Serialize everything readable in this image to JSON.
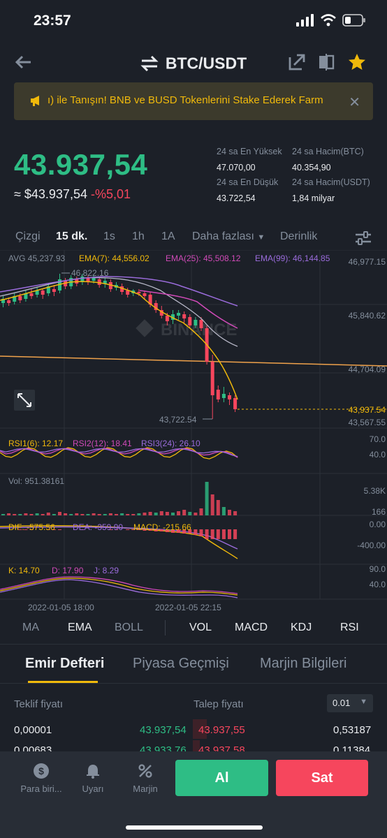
{
  "status": {
    "time": "23:57"
  },
  "nav": {
    "pair": "BTC/USDT"
  },
  "banner": {
    "text": "ı) ile Tanışın! BNB ve BUSD Tokenlerini Stake Ederek Farm",
    "close": "✕"
  },
  "price": {
    "last": "43.937,54",
    "approx": "≈ $43.937,54",
    "change": "-%5,01",
    "high_label": "24 sa En Yüksek",
    "high": "47.070,00",
    "low_label": "24 sa En Düşük",
    "low": "43.722,54",
    "vol_btc_label": "24 sa Hacim(BTC)",
    "vol_btc": "40.354,90",
    "vol_usdt_label": "24 sa Hacim(USDT)",
    "vol_usdt": "1,84 milyar"
  },
  "timeframes": {
    "line": "Çizgi",
    "m15": "15 dk.",
    "s1": "1s",
    "h1": "1h",
    "a1": "1A",
    "more": "Daha fazlası",
    "depth": "Derinlik"
  },
  "indicators": {
    "avg": "AVG 45,237.93",
    "ema7": "EMA(7): 44,556.02",
    "ema25": "EMA(25): 45,508.12",
    "ema99": "EMA(99): 46,144.85",
    "rsi6": "RSI1(6): 12.17",
    "rsi12": "RSI2(12): 18.41",
    "rsi24": "RSI3(24): 26.10",
    "vol": "Vol: 951.38161",
    "dif": "DIF: -575.56",
    "dea": "DEA: -359.90",
    "macd": "MACD: -215.66",
    "k": "K: 14.70",
    "d": "D: 17.90",
    "j": "J: 8.29"
  },
  "axis": {
    "p1": "46,977.15",
    "p2": "45,840.62",
    "p3": "44,704.09",
    "p4": "43,937.54",
    "p5": "43,567.55",
    "high_mark": "46,822.16",
    "low_mark": "43,722.54",
    "rsi_hi": "70.0",
    "rsi_lo": "40.0",
    "vol_hi": "5.38K",
    "vol_lo": "166",
    "macd_hi": "0.00",
    "macd_lo": "-400.00",
    "kdj_hi": "90.0",
    "kdj_lo": "40.0",
    "t1": "2022-01-05 18:00",
    "t2": "2022-01-05 22:15"
  },
  "chart_data": {
    "type": "candlestick",
    "watermark": "BINANCE",
    "ohlc_count": 42
  },
  "ind_tabs": {
    "ma": "MA",
    "ema": "EMA",
    "boll": "BOLL",
    "vol": "VOL",
    "macd": "MACD",
    "kdj": "KDJ",
    "rsi": "RSI"
  },
  "orderbook": {
    "tabs": [
      "Emir Defteri",
      "Piyasa Geçmişi",
      "Marjin Bilgileri"
    ],
    "bid_label": "Teklif fiyatı",
    "ask_label": "Talep fiyatı",
    "precision": "0.01",
    "rows": [
      {
        "bid_qty": "0,00001",
        "bid": "43.937,54",
        "ask": "43.937,55",
        "ask_qty": "0,53187"
      },
      {
        "bid_qty": "0,00683",
        "bid": "43.933,76",
        "ask": "43.937,58",
        "ask_qty": "0,11384"
      }
    ]
  },
  "bottom": {
    "currency": "Para biri...",
    "alert": "Uyarı",
    "margin": "Marjin",
    "buy": "Al",
    "sell": "Sat"
  },
  "colors": {
    "green": "#2ebd85",
    "red": "#f6465d",
    "yellow": "#f0b90b",
    "bg": "#1c2028"
  }
}
